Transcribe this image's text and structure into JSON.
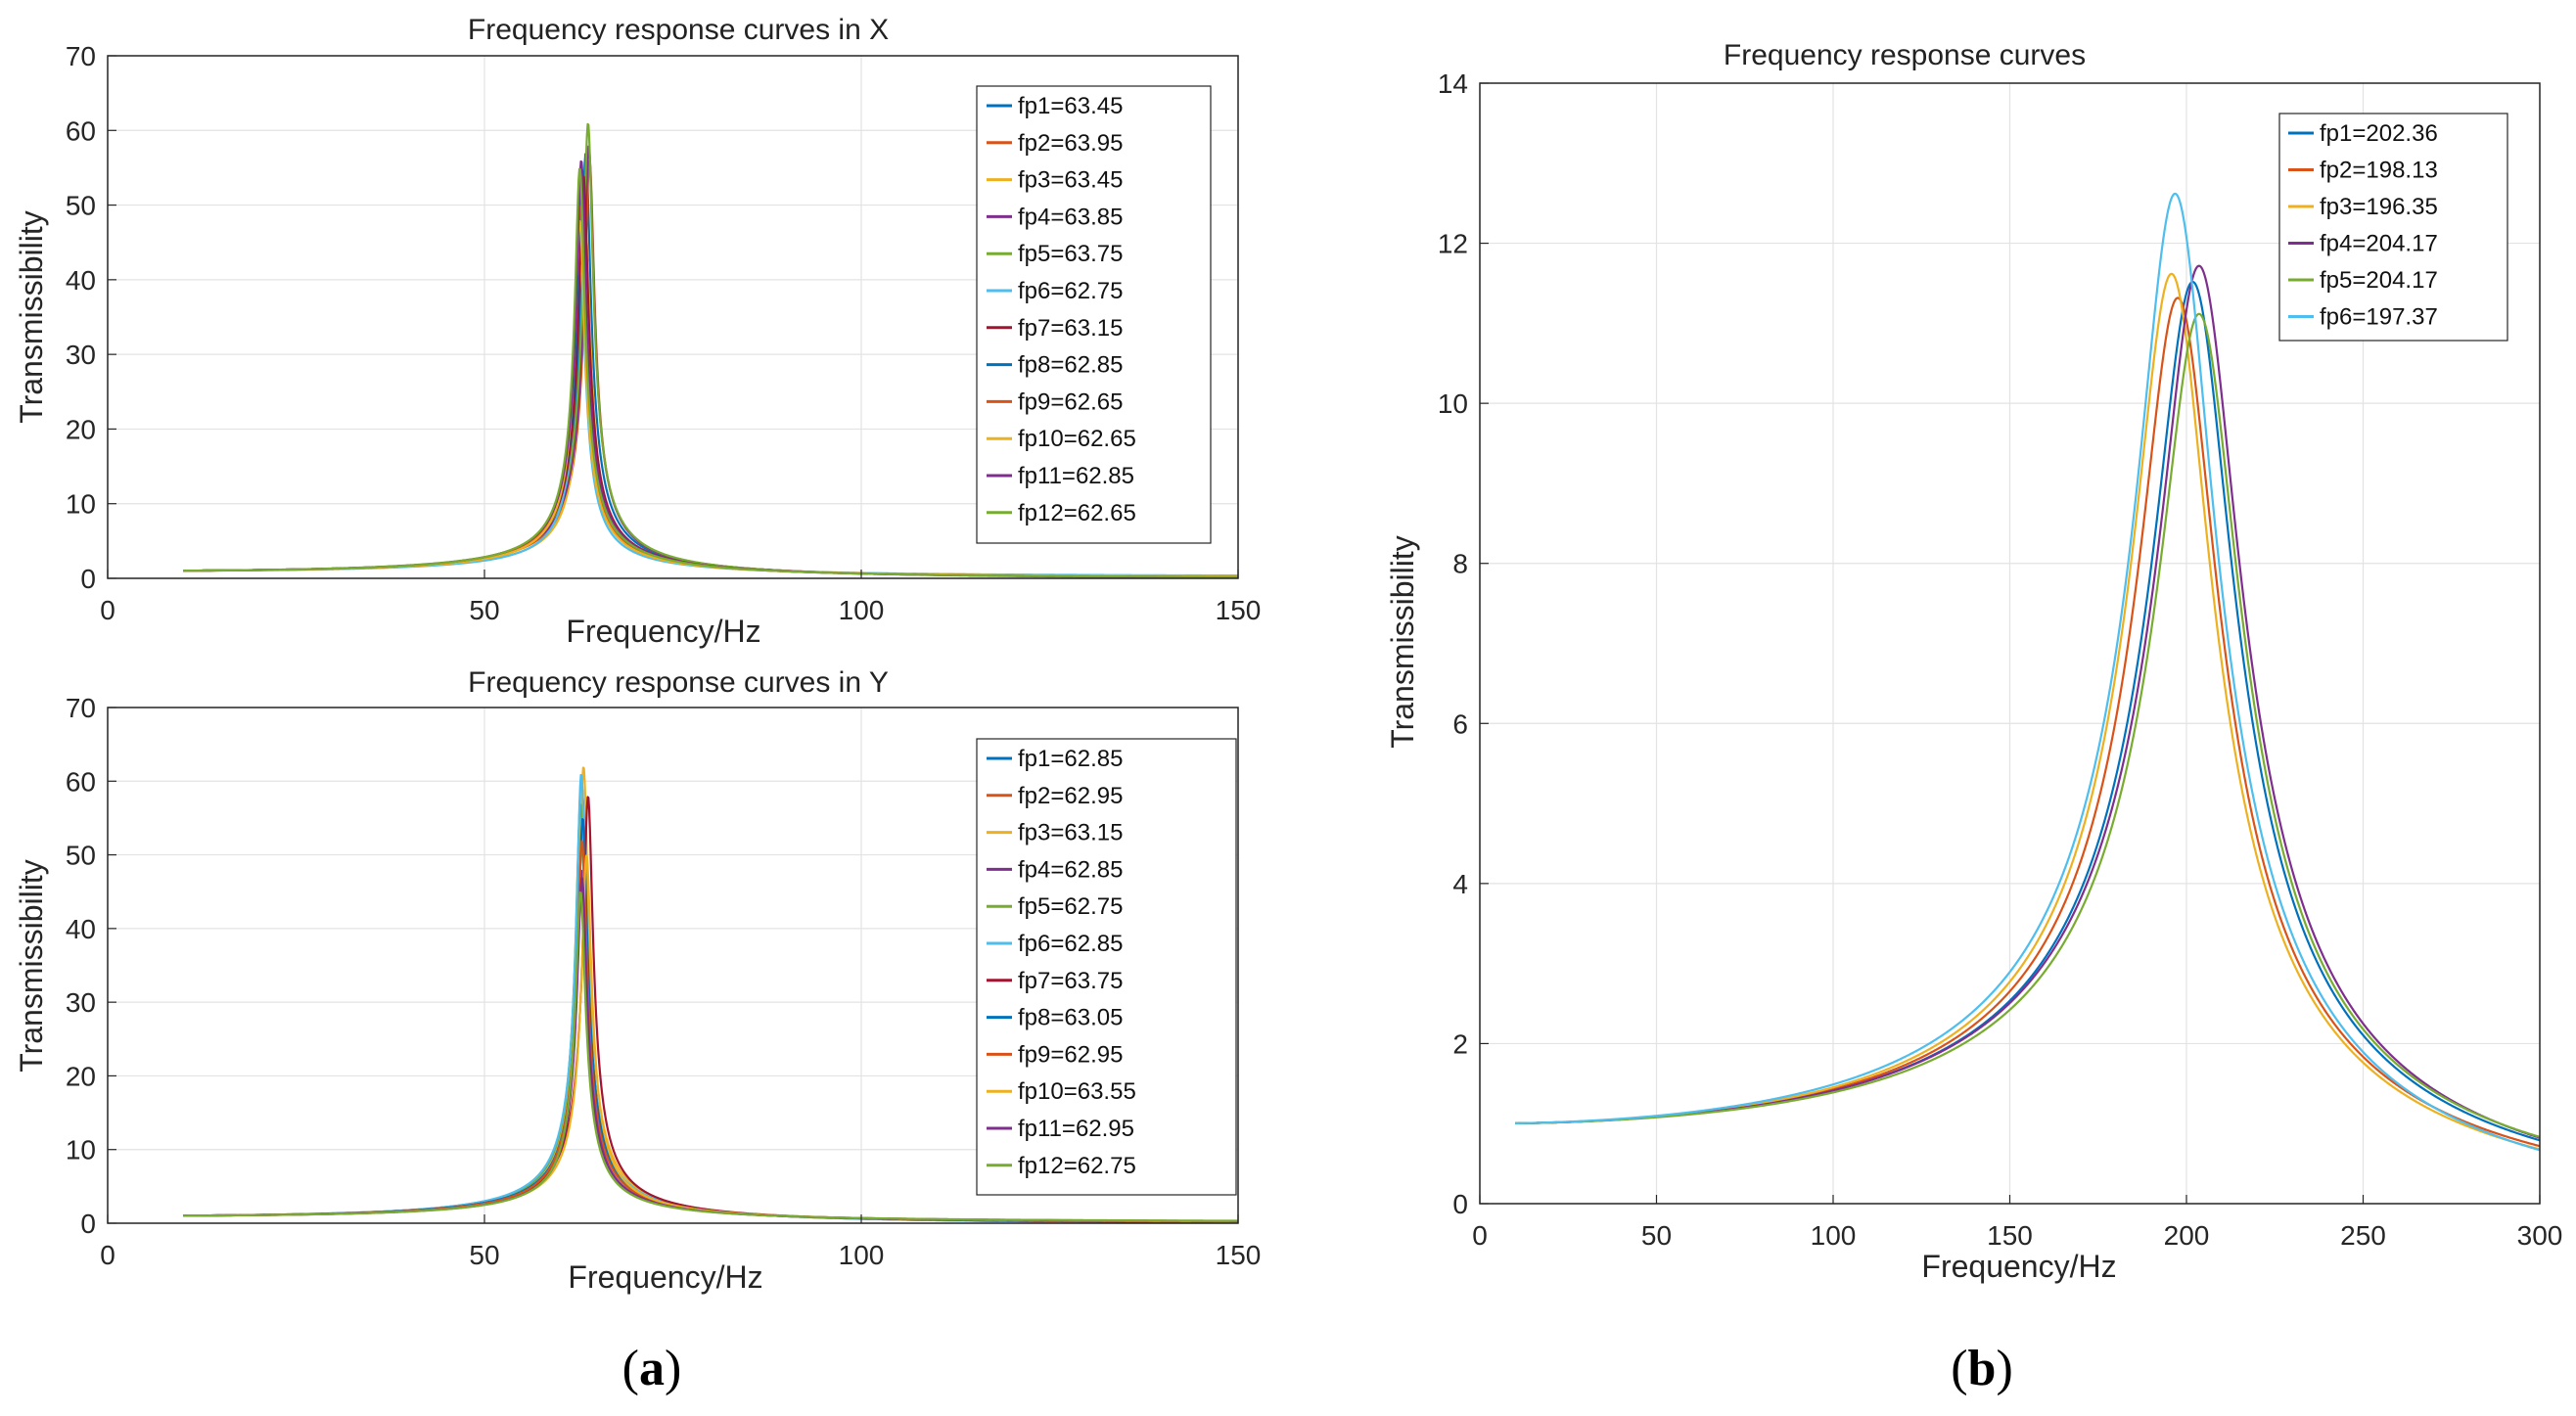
{
  "panel_labels": [
    "a",
    "b"
  ],
  "chart_data": [
    {
      "id": "x",
      "type": "line",
      "title": "Frequency response curves in X",
      "xlabel": "Frequency/Hz",
      "ylabel": "Transmissibility",
      "xlim": [
        0,
        150
      ],
      "ylim": [
        0,
        70
      ],
      "xticks": [
        0,
        50,
        100,
        150
      ],
      "yticks": [
        0,
        10,
        20,
        30,
        40,
        50,
        60,
        70
      ],
      "grid": true,
      "legend_position": "top-right",
      "x_start": 10,
      "series": [
        {
          "name": "fp1=63.45",
          "fp": 63.45,
          "peak": 57,
          "color": "#0072BD"
        },
        {
          "name": "fp2=63.95",
          "fp": 63.95,
          "peak": 56,
          "color": "#D95319"
        },
        {
          "name": "fp3=63.45",
          "fp": 63.45,
          "peak": 46,
          "color": "#EDB120"
        },
        {
          "name": "fp4=63.85",
          "fp": 63.85,
          "peak": 58,
          "color": "#7E2F8E"
        },
        {
          "name": "fp5=63.75",
          "fp": 63.75,
          "peak": 61,
          "color": "#77AC30"
        },
        {
          "name": "fp6=62.75",
          "fp": 62.75,
          "peak": 42,
          "color": "#4DBEEE"
        },
        {
          "name": "fp7=63.15",
          "fp": 63.15,
          "peak": 54,
          "color": "#A2142F"
        },
        {
          "name": "fp8=62.85",
          "fp": 62.85,
          "peak": 52,
          "color": "#0072BD"
        },
        {
          "name": "fp9=62.65",
          "fp": 62.65,
          "peak": 50,
          "color": "#D95319"
        },
        {
          "name": "fp10=62.65",
          "fp": 62.65,
          "peak": 48,
          "color": "#EDB120"
        },
        {
          "name": "fp11=62.85",
          "fp": 62.85,
          "peak": 56,
          "color": "#7E2F8E"
        },
        {
          "name": "fp12=62.65",
          "fp": 62.65,
          "peak": 55,
          "color": "#77AC30"
        }
      ]
    },
    {
      "id": "y",
      "type": "line",
      "title": "Frequency response curves in Y",
      "xlabel": "Frequency/Hz",
      "ylabel": "Transmissibility",
      "xlim": [
        0,
        150
      ],
      "ylim": [
        0,
        70
      ],
      "xticks": [
        0,
        50,
        100,
        150
      ],
      "yticks": [
        0,
        10,
        20,
        30,
        40,
        50,
        60,
        70
      ],
      "grid": true,
      "legend_position": "top-right",
      "x_start": 10,
      "series": [
        {
          "name": "fp1=62.85",
          "fp": 62.85,
          "peak": 60,
          "color": "#0072BD"
        },
        {
          "name": "fp2=62.95",
          "fp": 62.95,
          "peak": 59,
          "color": "#D95319"
        },
        {
          "name": "fp3=63.15",
          "fp": 63.15,
          "peak": 62,
          "color": "#EDB120"
        },
        {
          "name": "fp4=62.85",
          "fp": 62.85,
          "peak": 48,
          "color": "#7E2F8E"
        },
        {
          "name": "fp5=62.75",
          "fp": 62.75,
          "peak": 57,
          "color": "#77AC30"
        },
        {
          "name": "fp6=62.85",
          "fp": 62.85,
          "peak": 61,
          "color": "#4DBEEE"
        },
        {
          "name": "fp7=63.75",
          "fp": 63.75,
          "peak": 58,
          "color": "#A2142F"
        },
        {
          "name": "fp8=63.05",
          "fp": 63.05,
          "peak": 55,
          "color": "#0072BD"
        },
        {
          "name": "fp9=62.95",
          "fp": 62.95,
          "peak": 52,
          "color": "#D95319"
        },
        {
          "name": "fp10=63.55",
          "fp": 63.55,
          "peak": 50,
          "color": "#EDB120"
        },
        {
          "name": "fp11=62.95",
          "fp": 62.95,
          "peak": 47,
          "color": "#7E2F8E"
        },
        {
          "name": "fp12=62.75",
          "fp": 62.75,
          "peak": 45,
          "color": "#77AC30"
        }
      ]
    },
    {
      "id": "b",
      "type": "line",
      "title": "Frequency response curves",
      "xlabel": "Frequency/Hz",
      "ylabel": "Transmissibility",
      "xlim": [
        0,
        300
      ],
      "ylim": [
        0,
        14
      ],
      "xticks": [
        0,
        50,
        100,
        150,
        200,
        250,
        300
      ],
      "yticks": [
        0,
        2,
        4,
        6,
        8,
        10,
        12,
        14
      ],
      "grid": true,
      "legend_position": "top-right",
      "x_start": 10,
      "series": [
        {
          "name": "fp1=202.36",
          "fp": 202.36,
          "peak": 11.5,
          "color": "#0072BD"
        },
        {
          "name": "fp2=198.13",
          "fp": 198.13,
          "peak": 11.3,
          "color": "#D95319"
        },
        {
          "name": "fp3=196.35",
          "fp": 196.35,
          "peak": 11.6,
          "color": "#EDB120"
        },
        {
          "name": "fp4=204.17",
          "fp": 204.17,
          "peak": 11.7,
          "color": "#7E2F8E"
        },
        {
          "name": "fp5=204.17",
          "fp": 204.17,
          "peak": 11.1,
          "color": "#77AC30"
        },
        {
          "name": "fp6=197.37",
          "fp": 197.37,
          "peak": 12.6,
          "color": "#4DBEEE"
        }
      ]
    }
  ]
}
